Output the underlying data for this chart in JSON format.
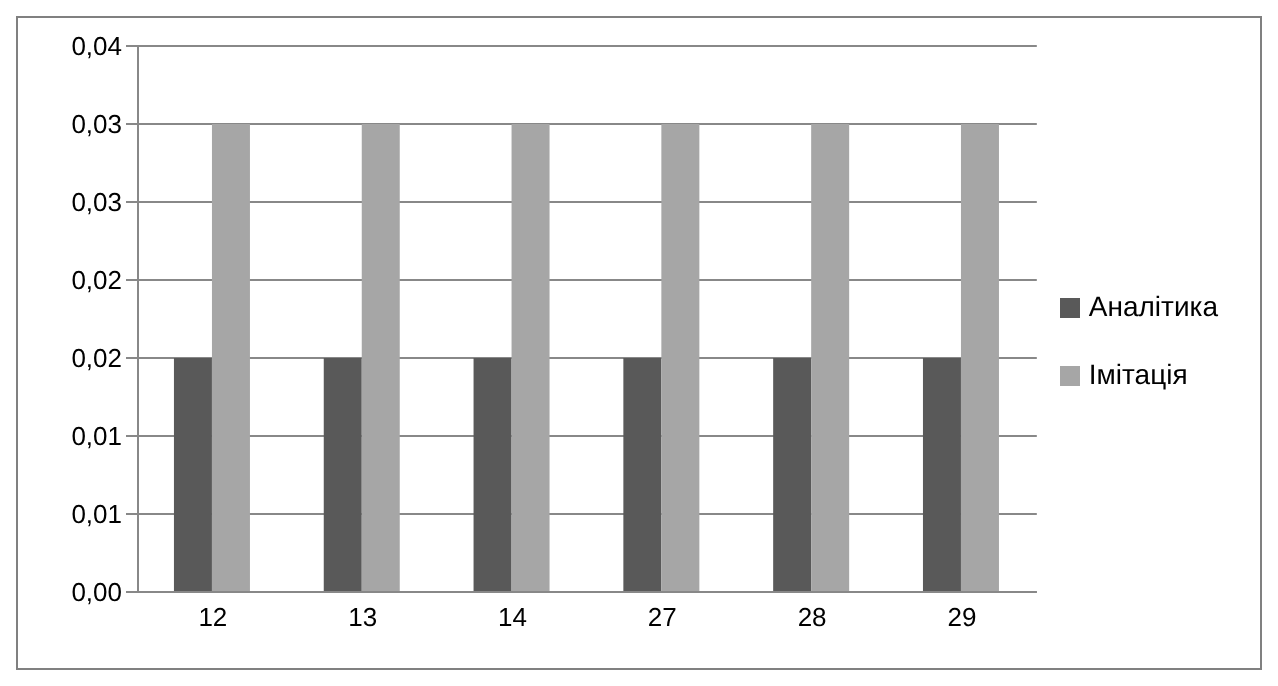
{
  "chart_data": {
    "type": "bar",
    "categories": [
      "12",
      "13",
      "14",
      "27",
      "28",
      "29"
    ],
    "series": [
      {
        "name": "Аналітика",
        "color": "#595959",
        "values": [
          0.015,
          0.015,
          0.015,
          0.015,
          0.015,
          0.015
        ]
      },
      {
        "name": "Імітація",
        "color": "#a6a6a6",
        "values": [
          0.03,
          0.03,
          0.03,
          0.03,
          0.03,
          0.03
        ]
      }
    ],
    "ylim": [
      0,
      0.035
    ],
    "yticks": [
      {
        "value": 0,
        "label": "0,00"
      },
      {
        "value": 0.005,
        "label": "0,01"
      },
      {
        "value": 0.01,
        "label": "0,01"
      },
      {
        "value": 0.015,
        "label": "0,02"
      },
      {
        "value": 0.02,
        "label": "0,02"
      },
      {
        "value": 0.025,
        "label": "0,03"
      },
      {
        "value": 0.03,
        "label": "0,03"
      },
      {
        "value": 0.035,
        "label": "0,04"
      }
    ],
    "grid": "y",
    "legend": "right"
  }
}
